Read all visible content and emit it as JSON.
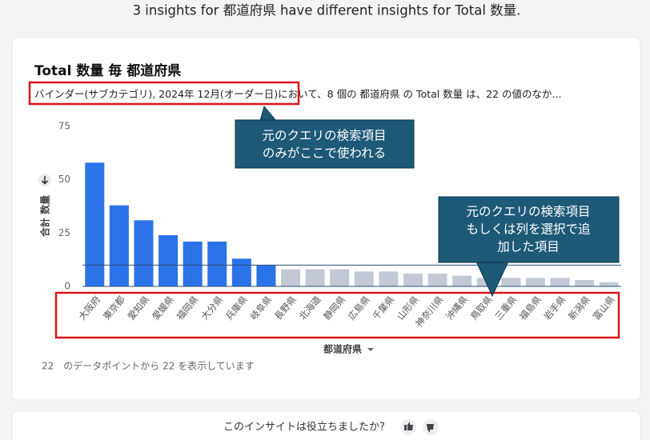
{
  "header": {
    "title": "3 insights for 都道府県 have different insights for Total 数量."
  },
  "card": {
    "title": "Total 数量 毎 都道府県",
    "subtitle_highlight": "バインダー(サブカテゴリ), 2024年 12月(オーダー日)",
    "subtitle_rest": "において、8 個の 都道府県 の Total 数量 は、22 の値のなか...",
    "footer": "22　のデータポイントから 22 を表示しています"
  },
  "chart_data": {
    "type": "bar",
    "x_label": "都道府県",
    "y_label": "合計 数量",
    "categories": [
      "大阪府",
      "東京都",
      "愛知県",
      "愛媛県",
      "福岡県",
      "大分県",
      "兵庫県",
      "岐阜県",
      "長野県",
      "北海道",
      "静岡県",
      "広島県",
      "千葉県",
      "山形県",
      "神奈川県",
      "沖縄県",
      "鳥取県",
      "三重県",
      "福島県",
      "岩手県",
      "新潟県",
      "富山県"
    ],
    "values": [
      58,
      38,
      31,
      24,
      21,
      21,
      13,
      10,
      8,
      8,
      8,
      7,
      7,
      6,
      6,
      5,
      4,
      4,
      4,
      4,
      3,
      2
    ],
    "colors": [
      "#2b72e8",
      "#2b72e8",
      "#2b72e8",
      "#2b72e8",
      "#2b72e8",
      "#2b72e8",
      "#2b72e8",
      "#2b72e8",
      "#c2c9d4",
      "#c2c9d4",
      "#c2c9d4",
      "#c2c9d4",
      "#c2c9d4",
      "#c2c9d4",
      "#c2c9d4",
      "#c2c9d4",
      "#c2c9d4",
      "#c2c9d4",
      "#c2c9d4",
      "#c2c9d4",
      "#c2c9d4",
      "#c2c9d4"
    ],
    "reference_line": 10,
    "ylim": [
      0,
      75
    ],
    "yticks": [
      0,
      25,
      50,
      75
    ]
  },
  "callouts": [
    {
      "lines": [
        "元のクエリの検索項目",
        "のみがここで使われる"
      ]
    },
    {
      "lines": [
        "元のクエリの検索項目",
        "もしくは列を選択で追",
        "加した項目"
      ]
    }
  ],
  "feedback": {
    "question": "このインサイトは役立ちましたか?"
  }
}
